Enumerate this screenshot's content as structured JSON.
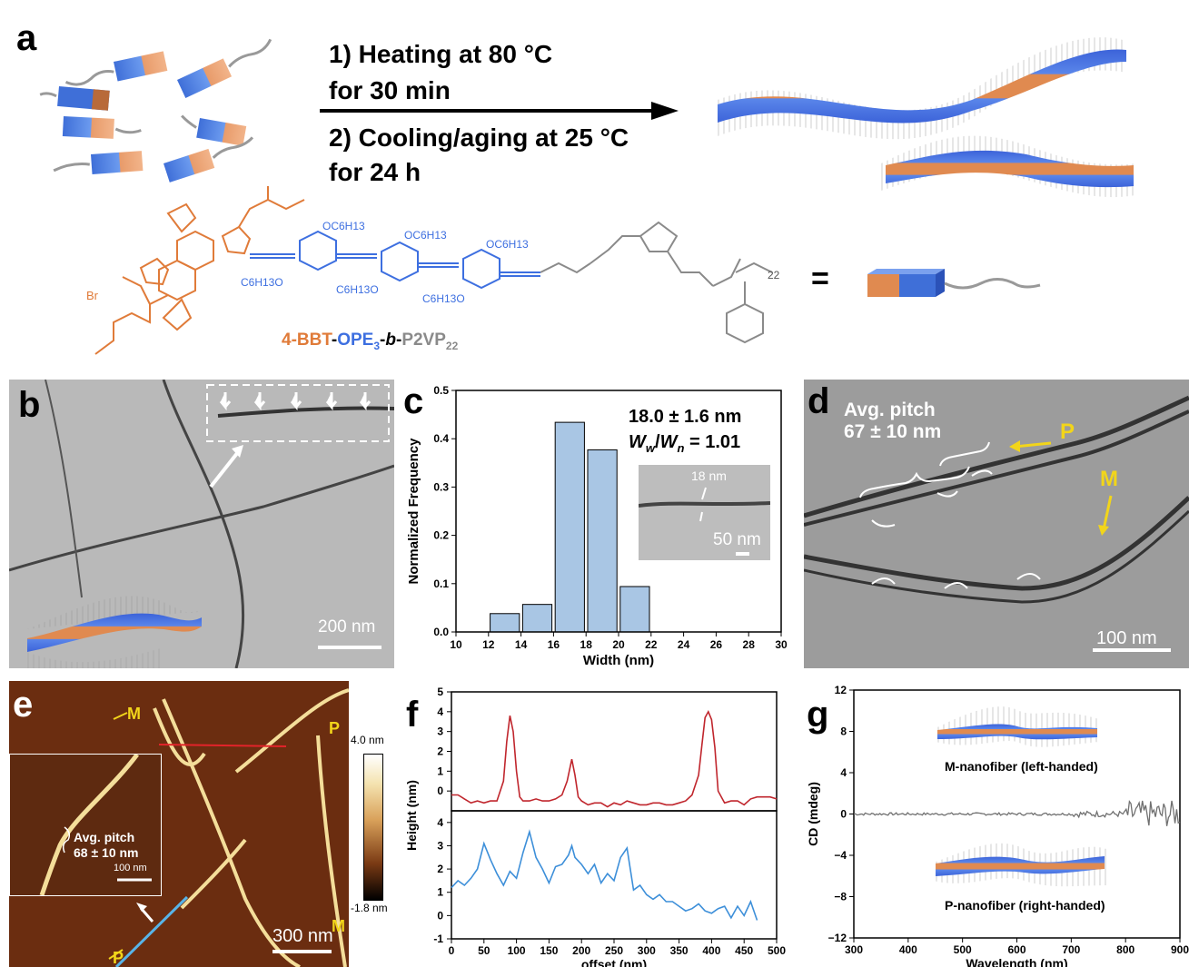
{
  "panel_a": {
    "label": "a",
    "step1_line1": "1) Heating at 80 °C",
    "step1_line2": "for 30 min",
    "step2_line1": "2) Cooling/aging at 25 °C",
    "step2_line2": "for 24 h",
    "equals": "=",
    "molecule": {
      "name_parts": [
        "4-BBT",
        "-",
        "OPE",
        "3",
        "-",
        "b",
        "-",
        "P2VP",
        "22"
      ],
      "groups": [
        "OC6H13",
        "OC6H13",
        "OC6H13",
        "C6H13O",
        "C6H13O",
        "C6H13O"
      ],
      "br": "Br",
      "n": "22",
      "repeat_n": "22"
    },
    "colors": {
      "bbt": "#E07B39",
      "ope": "#3D6FE0",
      "p2vp": "#8A8A8A"
    }
  },
  "panel_b": {
    "label": "b",
    "scale": "200 nm"
  },
  "panel_c": {
    "label": "c",
    "stat1": "18.0 ± 1.6 nm",
    "stat2_a": "W",
    "stat2_a_sub": "w",
    "stat2_b": "W",
    "stat2_b_sub": "n",
    "stat2_val": " = 1.01",
    "inset_label": "18 nm",
    "inset_scale": "50 nm"
  },
  "panel_d": {
    "label": "d",
    "pitch_line1": "Avg.  pitch",
    "pitch_line2": "67 ± 10 nm",
    "p": "P",
    "m": "M",
    "scale": "100 nm"
  },
  "panel_e": {
    "label": "e",
    "m1": "M",
    "p1": "P",
    "m2": "M",
    "p2": "P",
    "inset_pitch1": "Avg.  pitch",
    "inset_pitch2": "68 ± 10 nm",
    "inset_scale": "100 nm",
    "colorbar_max": "4.0 nm",
    "colorbar_min": "-1.8 nm",
    "scale": "300 nm"
  },
  "panel_f": {
    "label": "f"
  },
  "panel_g": {
    "label": "g",
    "caption_m": "M-nanofiber (left-handed)",
    "caption_p": "P-nanofiber (right-handed)"
  },
  "chart_data": [
    {
      "id": "c",
      "type": "bar",
      "xlabel": "Width (nm)",
      "ylabel": "Normalized Frequency",
      "xlim": [
        10,
        30
      ],
      "ylim": [
        0,
        0.5
      ],
      "xticks": [
        10,
        12,
        14,
        16,
        18,
        20,
        22,
        24,
        26,
        28,
        30
      ],
      "yticks": [
        0.0,
        0.1,
        0.2,
        0.3,
        0.4,
        0.5
      ],
      "bin_width": 2,
      "bin_centers": [
        13,
        15,
        17,
        19,
        21
      ],
      "values": [
        0.038,
        0.057,
        0.434,
        0.377,
        0.094
      ],
      "bar_color": "#A9C6E4"
    },
    {
      "id": "f",
      "type": "line",
      "xlabel": "offset (nm)",
      "ylabel": "Height (nm)",
      "xlim": [
        0,
        500
      ],
      "xticks": [
        0,
        50,
        100,
        150,
        200,
        250,
        300,
        350,
        400,
        450,
        500
      ],
      "panels": [
        {
          "ylim": [
            -1,
            5
          ],
          "yticks": [
            -1,
            0,
            1,
            2,
            3,
            4,
            5
          ],
          "color": "#C0262D",
          "x": [
            0,
            10,
            20,
            30,
            40,
            50,
            60,
            70,
            80,
            85,
            90,
            95,
            100,
            105,
            110,
            120,
            130,
            140,
            150,
            160,
            170,
            178,
            185,
            190,
            195,
            200,
            210,
            220,
            230,
            240,
            250,
            260,
            270,
            280,
            290,
            300,
            310,
            320,
            330,
            340,
            350,
            360,
            370,
            380,
            385,
            390,
            395,
            400,
            405,
            410,
            420,
            430,
            440,
            450,
            460,
            470,
            480,
            490,
            500
          ],
          "y": [
            -0.2,
            -0.2,
            -0.4,
            -0.6,
            -0.5,
            -0.6,
            -0.5,
            -0.5,
            0.5,
            2.5,
            3.8,
            3.0,
            1.0,
            -0.3,
            -0.5,
            -0.5,
            -0.4,
            -0.5,
            -0.5,
            -0.4,
            -0.2,
            0.5,
            1.6,
            0.8,
            -0.3,
            -0.5,
            -0.7,
            -0.6,
            -0.6,
            -0.8,
            -0.6,
            -0.7,
            -0.5,
            -0.6,
            -0.7,
            -0.7,
            -0.6,
            -0.6,
            -0.7,
            -0.7,
            -0.6,
            -0.5,
            -0.2,
            0.8,
            2.3,
            3.7,
            4.0,
            3.6,
            2.2,
            0.0,
            -0.6,
            -0.5,
            -0.5,
            -0.7,
            -0.4,
            -0.3,
            -0.3,
            -0.3,
            -0.4
          ]
        },
        {
          "ylim": [
            -1,
            4.5
          ],
          "yticks": [
            -1,
            0,
            1,
            2,
            3,
            4
          ],
          "color": "#3D8FD9",
          "x": [
            0,
            10,
            20,
            30,
            40,
            50,
            60,
            70,
            80,
            90,
            100,
            110,
            120,
            130,
            140,
            150,
            160,
            170,
            180,
            185,
            190,
            200,
            210,
            220,
            230,
            240,
            250,
            260,
            270,
            280,
            290,
            300,
            310,
            320,
            330,
            340,
            350,
            360,
            370,
            380,
            390,
            400,
            410,
            420,
            430,
            440,
            450,
            460,
            470
          ],
          "y": [
            1.2,
            1.5,
            1.3,
            1.6,
            2.0,
            3.1,
            2.4,
            1.8,
            1.3,
            1.9,
            1.6,
            2.7,
            3.6,
            2.5,
            2.0,
            1.4,
            2.1,
            2.2,
            2.6,
            3.0,
            2.5,
            2.2,
            1.8,
            2.2,
            1.4,
            1.8,
            1.5,
            2.5,
            2.9,
            1.1,
            1.3,
            0.9,
            0.7,
            0.9,
            0.6,
            0.6,
            0.4,
            0.2,
            0.3,
            0.5,
            0.2,
            0.1,
            0.3,
            0.4,
            -0.1,
            0.4,
            0.0,
            0.6,
            -0.2
          ]
        }
      ]
    },
    {
      "id": "g",
      "type": "line",
      "xlabel": "Wavelength (nm)",
      "ylabel": "CD (mdeg)",
      "xlim": [
        300,
        900
      ],
      "ylim": [
        -12,
        12
      ],
      "xticks": [
        300,
        400,
        500,
        600,
        700,
        800,
        900
      ],
      "yticks": [
        -12,
        -8,
        -4,
        0,
        4,
        8,
        12
      ],
      "color": "#707070",
      "description_values": "near-zero CD signal with noise increasing beyond 800 nm"
    }
  ]
}
